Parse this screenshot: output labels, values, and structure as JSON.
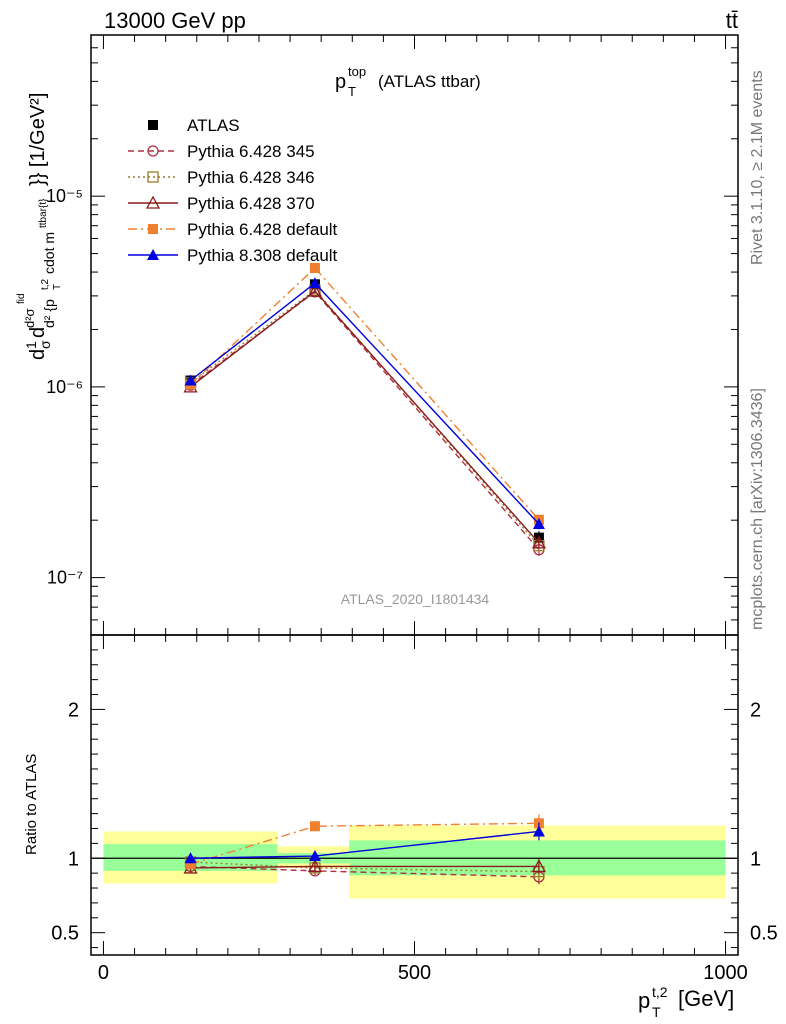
{
  "header": {
    "left": "13000 GeV pp",
    "right": "tt̄"
  },
  "side_labels": {
    "rivet": "Rivet 3.1.10, ≥ 2.1M events",
    "mcplots": "mcplots.cern.ch [arXiv:1306.3436]"
  },
  "chart_data": [
    {
      "type": "line",
      "title": "p_T^top (ATLAS ttbar)",
      "watermark": "ATLAS_2020_I1801434",
      "ylabel": "d1/σ d²σ^fid / d²{p_T^t,2 cdot m^ttbar{t}} [1/GeV²]",
      "xlim": [
        -20,
        1020
      ],
      "ylim": [
        5e-08,
        7e-05
      ],
      "yscale": "log",
      "y_ticks": [
        {
          "value": 1e-07,
          "label": "10⁻⁷"
        },
        {
          "value": 1e-06,
          "label": "10⁻⁶"
        },
        {
          "value": 1e-05,
          "label": "10⁻⁵"
        }
      ],
      "legend_position": "top-left",
      "series": [
        {
          "name": "ATLAS",
          "color": "#000000",
          "marker": "square-filled",
          "line": "none",
          "x": [
            140,
            340,
            700
          ],
          "y": [
            1.08e-06,
            3.45e-06,
            1.62e-07
          ],
          "yerr": [
            5e-08,
            1.2e-07,
            1.3e-08
          ],
          "xerr_low": [
            0,
            60,
            300
          ],
          "xerr_high": [
            0,
            60,
            300
          ]
        },
        {
          "name": "Pythia 6.428 345",
          "color": "#b03040",
          "marker": "circle-open",
          "line": "dashed",
          "x": [
            140,
            340,
            700
          ],
          "y": [
            1.02e-06,
            3.15e-06,
            1.4e-07
          ],
          "yerr": [
            3e-08,
            8e-08,
            1e-08
          ]
        },
        {
          "name": "Pythia 6.428 346",
          "color": "#9c7c2c",
          "marker": "square-open",
          "line": "dotted",
          "x": [
            140,
            340,
            700
          ],
          "y": [
            1.05e-06,
            3.22e-06,
            1.47e-07
          ],
          "yerr": [
            3e-08,
            8e-08,
            1e-08
          ]
        },
        {
          "name": "Pythia 6.428 370",
          "color": "#8b1a1a",
          "marker": "triangle-open",
          "line": "solid",
          "x": [
            140,
            340,
            700
          ],
          "y": [
            1e-06,
            3.18e-06,
            1.52e-07
          ],
          "yerr": [
            3e-08,
            8e-08,
            1e-08
          ]
        },
        {
          "name": "Pythia 6.428 default",
          "color": "#f08030",
          "marker": "square-filled",
          "line": "dashdot",
          "x": [
            140,
            340,
            700
          ],
          "y": [
            1.03e-06,
            4.2e-06,
            2.01e-07
          ],
          "yerr": [
            3e-08,
            1e-07,
            1.2e-08
          ]
        },
        {
          "name": "Pythia 8.308 default",
          "color": "#0000dd",
          "marker": "triangle-filled",
          "line": "solid",
          "x": [
            140,
            340,
            700
          ],
          "y": [
            1.08e-06,
            3.5e-06,
            1.91e-07
          ],
          "yerr": [
            3e-08,
            8e-08,
            1.2e-08
          ]
        }
      ]
    },
    {
      "type": "line",
      "title": "",
      "xlabel": "p_T^t,2 [GeV]",
      "ylabel": "Ratio to ATLAS",
      "xlim": [
        -20,
        1020
      ],
      "ylim": [
        0.35,
        2.5
      ],
      "x_ticks": [
        0,
        500,
        1000
      ],
      "y_ticks": [
        {
          "value": 0.5,
          "label": "0.5"
        },
        {
          "value": 1,
          "label": "1"
        },
        {
          "value": 2,
          "label": "2"
        }
      ],
      "bands": [
        {
          "x_low": 0,
          "x_high": 280,
          "inner": [
            0.915,
            1.095
          ],
          "outer": [
            0.83,
            1.18
          ]
        },
        {
          "x_low": 280,
          "x_high": 395,
          "inner": [
            0.965,
            1.035
          ],
          "outer": [
            0.935,
            1.08
          ]
        },
        {
          "x_low": 395,
          "x_high": 1000,
          "inner": [
            0.885,
            1.12
          ],
          "outer": [
            0.73,
            1.22
          ]
        }
      ],
      "reference": 1.0,
      "series": [
        {
          "name": "Pythia 6.428 345",
          "color": "#b03040",
          "marker": "circle-open",
          "line": "dashed",
          "x": [
            140,
            340,
            700
          ],
          "y": [
            0.945,
            0.915,
            0.875
          ],
          "yerr": [
            0.03,
            0.03,
            0.05
          ]
        },
        {
          "name": "Pythia 6.428 346",
          "color": "#9c7c2c",
          "marker": "square-open",
          "line": "dotted",
          "x": [
            140,
            340,
            700
          ],
          "y": [
            0.975,
            0.935,
            0.91
          ],
          "yerr": [
            0.03,
            0.03,
            0.05
          ]
        },
        {
          "name": "Pythia 6.428 370",
          "color": "#8b1a1a",
          "marker": "triangle-open",
          "line": "solid",
          "x": [
            140,
            340,
            700
          ],
          "y": [
            0.935,
            0.945,
            0.945
          ],
          "yerr": [
            0.03,
            0.03,
            0.05
          ]
        },
        {
          "name": "Pythia 6.428 default",
          "color": "#f08030",
          "marker": "square-filled",
          "line": "dashdot",
          "x": [
            140,
            340,
            700
          ],
          "y": [
            0.96,
            1.215,
            1.235
          ],
          "yerr": [
            0.03,
            0.035,
            0.06
          ]
        },
        {
          "name": "Pythia 8.308 default",
          "color": "#0000dd",
          "marker": "triangle-filled",
          "line": "solid",
          "x": [
            140,
            340,
            700
          ],
          "y": [
            1.0,
            1.015,
            1.18
          ],
          "yerr": [
            0.035,
            0.03,
            0.06
          ]
        }
      ]
    }
  ]
}
